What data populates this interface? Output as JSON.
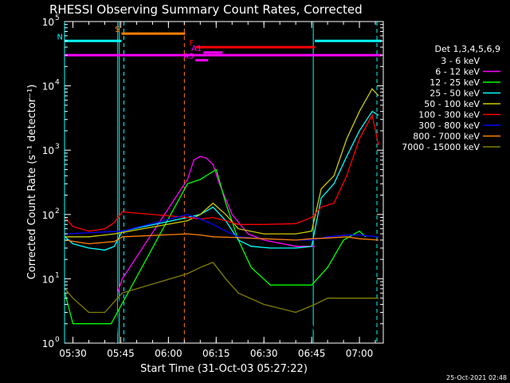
{
  "chart_data": {
    "type": "line",
    "title": "RHESSI Observing Summary Count Rates, Corrected",
    "xlabel": "Start Time (31-Oct-03 05:27:22)",
    "ylabel": "Corrected Count Rate (s⁻¹ detector⁻¹)",
    "y_scale": "log",
    "ylim": [
      1,
      100000
    ],
    "xlim": [
      "05:27:22",
      "07:07:30"
    ],
    "x_ticks": [
      "05:30",
      "05:45",
      "06:00",
      "06:15",
      "06:30",
      "06:45",
      "07:00"
    ],
    "y_ticks": [
      {
        "value": 1,
        "base": "10",
        "exp": "0"
      },
      {
        "value": 10,
        "base": "10",
        "exp": "1"
      },
      {
        "value": 100,
        "base": "10",
        "exp": "2"
      },
      {
        "value": 1000,
        "base": "10",
        "exp": "3"
      },
      {
        "value": 10000,
        "base": "10",
        "exp": "4"
      },
      {
        "value": 100000,
        "base": "10",
        "exp": "5"
      }
    ],
    "legend_title": "Det 1,3,4,5,6,9",
    "legend_position": "right",
    "series": [
      {
        "name": "3 - 6 keV",
        "color": "#000000",
        "points": [
          [
            "05:43:30",
            1
          ],
          [
            "05:44:30",
            4
          ],
          [
            "05:45:30",
            8
          ],
          [
            "06:06:00",
            60
          ],
          [
            "06:10:00",
            80
          ],
          [
            "06:14:00",
            60
          ],
          [
            "06:18:00",
            20
          ],
          [
            "06:22:00",
            8
          ],
          [
            "06:26:00",
            5
          ],
          [
            "06:30:00",
            4
          ],
          [
            "06:38:00",
            4
          ],
          [
            "06:44:00",
            3
          ],
          [
            "06:46:30",
            1.2
          ],
          [
            "06:48:30",
            2
          ]
        ]
      },
      {
        "name": "6 - 12 keV",
        "color": "#ff00ff",
        "points": [
          [
            "05:44:00",
            6
          ],
          [
            "05:45:30",
            10
          ],
          [
            "06:06:00",
            350
          ],
          [
            "06:08:00",
            700
          ],
          [
            "06:10:00",
            800
          ],
          [
            "06:12:00",
            750
          ],
          [
            "06:14:00",
            600
          ],
          [
            "06:16:00",
            300
          ],
          [
            "06:20:00",
            100
          ],
          [
            "06:25:00",
            50
          ],
          [
            "06:30:00",
            40
          ],
          [
            "06:40:00",
            32
          ],
          [
            "06:46:00",
            32
          ]
        ]
      },
      {
        "name": "12 - 25 keV",
        "color": "#00ff00",
        "points": [
          [
            "05:27:30",
            6
          ],
          [
            "05:30:00",
            2
          ],
          [
            "05:35:00",
            2
          ],
          [
            "05:40:00",
            2
          ],
          [
            "05:42:00",
            2
          ],
          [
            "06:06:00",
            300
          ],
          [
            "06:10:00",
            350
          ],
          [
            "06:15:00",
            500
          ],
          [
            "06:18:00",
            150
          ],
          [
            "06:22:00",
            40
          ],
          [
            "06:26:00",
            15
          ],
          [
            "06:32:00",
            8
          ],
          [
            "06:40:00",
            8
          ],
          [
            "06:45:00",
            8
          ],
          [
            "06:50:00",
            15
          ],
          [
            "06:55:00",
            40
          ],
          [
            "07:00:00",
            55
          ],
          [
            "07:02:00",
            45
          ]
        ]
      },
      {
        "name": "25 - 50 keV",
        "color": "#00ffff",
        "points": [
          [
            "05:27:30",
            45
          ],
          [
            "05:30:00",
            35
          ],
          [
            "05:35:00",
            30
          ],
          [
            "05:40:00",
            28
          ],
          [
            "05:43:00",
            32
          ],
          [
            "05:45:30",
            55
          ],
          [
            "06:06:00",
            90
          ],
          [
            "06:10:00",
            100
          ],
          [
            "06:14:00",
            130
          ],
          [
            "06:18:00",
            80
          ],
          [
            "06:22:00",
            40
          ],
          [
            "06:26:00",
            32
          ],
          [
            "06:32:00",
            30
          ],
          [
            "06:40:00",
            30
          ],
          [
            "06:45:00",
            32
          ],
          [
            "06:48:00",
            180
          ],
          [
            "06:52:00",
            300
          ],
          [
            "06:56:00",
            800
          ],
          [
            "07:00:00",
            2000
          ],
          [
            "07:04:00",
            4000
          ],
          [
            "07:06:00",
            3500
          ]
        ]
      },
      {
        "name": "50 - 100 keV",
        "color": "#cccc00",
        "points": [
          [
            "05:27:30",
            45
          ],
          [
            "05:35:00",
            45
          ],
          [
            "05:43:00",
            50
          ],
          [
            "06:06:00",
            80
          ],
          [
            "06:10:00",
            100
          ],
          [
            "06:14:00",
            150
          ],
          [
            "06:18:00",
            100
          ],
          [
            "06:22:00",
            60
          ],
          [
            "06:30:00",
            50
          ],
          [
            "06:40:00",
            50
          ],
          [
            "06:45:00",
            55
          ],
          [
            "06:48:00",
            250
          ],
          [
            "06:52:00",
            400
          ],
          [
            "06:56:00",
            1500
          ],
          [
            "07:00:00",
            4000
          ],
          [
            "07:04:00",
            9000
          ],
          [
            "07:06:00",
            7000
          ]
        ]
      },
      {
        "name": "100 - 300 keV",
        "color": "#ff0000",
        "points": [
          [
            "05:27:30",
            90
          ],
          [
            "05:30:00",
            65
          ],
          [
            "05:35:00",
            55
          ],
          [
            "05:40:00",
            60
          ],
          [
            "05:43:00",
            75
          ],
          [
            "05:45:30",
            110
          ],
          [
            "06:06:00",
            90
          ],
          [
            "06:10:00",
            85
          ],
          [
            "06:14:00",
            90
          ],
          [
            "06:18:00",
            80
          ],
          [
            "06:22:00",
            70
          ],
          [
            "06:30:00",
            70
          ],
          [
            "06:40:00",
            72
          ],
          [
            "06:45:00",
            90
          ],
          [
            "06:48:00",
            130
          ],
          [
            "06:52:00",
            150
          ],
          [
            "06:56:00",
            400
          ],
          [
            "07:00:00",
            1500
          ],
          [
            "07:04:00",
            3500
          ],
          [
            "07:06:00",
            1200
          ]
        ]
      },
      {
        "name": "300 - 800 keV",
        "color": "#0000ff",
        "points": [
          [
            "05:27:30",
            50
          ],
          [
            "05:45:30",
            55
          ],
          [
            "06:06:00",
            100
          ],
          [
            "06:10:00",
            85
          ],
          [
            "06:14:00",
            70
          ],
          [
            "06:18:00",
            55
          ],
          [
            "06:22:00",
            45
          ],
          [
            "06:30:00",
            42
          ],
          [
            "06:40:00",
            40
          ],
          [
            "06:45:00",
            40
          ],
          [
            "06:50:00",
            45
          ],
          [
            "06:56:00",
            48
          ],
          [
            "07:00:00",
            48
          ],
          [
            "07:06:00",
            45
          ]
        ]
      },
      {
        "name": "800 - 7000 keV",
        "color": "#ff8000",
        "points": [
          [
            "05:27:30",
            40
          ],
          [
            "05:35:00",
            35
          ],
          [
            "05:43:00",
            38
          ],
          [
            "05:45:30",
            45
          ],
          [
            "06:06:00",
            50
          ],
          [
            "06:10:00",
            48
          ],
          [
            "06:14:00",
            45
          ],
          [
            "06:20:00",
            44
          ],
          [
            "06:30:00",
            42
          ],
          [
            "06:40:00",
            40
          ],
          [
            "06:45:00",
            42
          ],
          [
            "06:50:00",
            43
          ],
          [
            "06:56:00",
            45
          ],
          [
            "07:00:00",
            42
          ],
          [
            "07:06:00",
            40
          ]
        ]
      },
      {
        "name": "7000 - 15000 keV",
        "color": "#808000",
        "points": [
          [
            "05:27:30",
            7
          ],
          [
            "05:30:00",
            5
          ],
          [
            "05:35:00",
            3
          ],
          [
            "05:40:00",
            3
          ],
          [
            "05:44:00",
            5
          ],
          [
            "05:45:30",
            6
          ],
          [
            "06:06:00",
            12
          ],
          [
            "06:10:00",
            15
          ],
          [
            "06:14:00",
            18
          ],
          [
            "06:18:00",
            10
          ],
          [
            "06:22:00",
            6
          ],
          [
            "06:30:00",
            4
          ],
          [
            "06:40:00",
            3
          ],
          [
            "06:46:00",
            4
          ],
          [
            "06:50:00",
            5
          ],
          [
            "06:56:00",
            5
          ],
          [
            "07:06:00",
            5
          ]
        ]
      }
    ],
    "attenuator_bars": [
      {
        "label": "S",
        "start": "05:45:15",
        "end": "06:05:15",
        "y": 65000,
        "color": "#ff8000"
      },
      {
        "label": "N",
        "start": "05:27:22",
        "end": "05:45:15",
        "y": 50000,
        "color": "#00ffff"
      },
      {
        "label": "",
        "start": "06:46:00",
        "end": "07:07:00",
        "y": 50000,
        "color": "#00ffff"
      },
      {
        "label": "F",
        "start": "06:08:30",
        "end": "06:46:00",
        "y": 40000,
        "color": "#ff0000"
      },
      {
        "label": "A1",
        "start": "06:11:00",
        "end": "06:17:00",
        "y": 33000,
        "color": "#ff00ff"
      },
      {
        "label": "",
        "start": "05:27:22",
        "end": "07:07:00",
        "y": 30000,
        "color": "#ff00ff"
      },
      {
        "label": "A3",
        "start": "06:08:30",
        "end": "06:12:30",
        "y": 25000,
        "color": "#ff00ff"
      }
    ],
    "vlines": [
      {
        "t": "05:44:30",
        "color": "#00ffff",
        "style": "solid"
      },
      {
        "t": "05:46:00",
        "color": "#00ffff",
        "style": "dashed"
      },
      {
        "t": "05:44:00",
        "color": "#ff8000",
        "style": "solid"
      },
      {
        "t": "06:05:00",
        "color": "#ff8000",
        "style": "dashed"
      },
      {
        "t": "06:45:30",
        "color": "#00ffff",
        "style": "solid"
      },
      {
        "t": "07:05:30",
        "color": "#00ffff",
        "style": "dashed"
      },
      {
        "t": "05:27:22",
        "color": "#00ffff",
        "style": "solid"
      }
    ],
    "footer_timestamp": "25-Oct-2021 02:48"
  }
}
